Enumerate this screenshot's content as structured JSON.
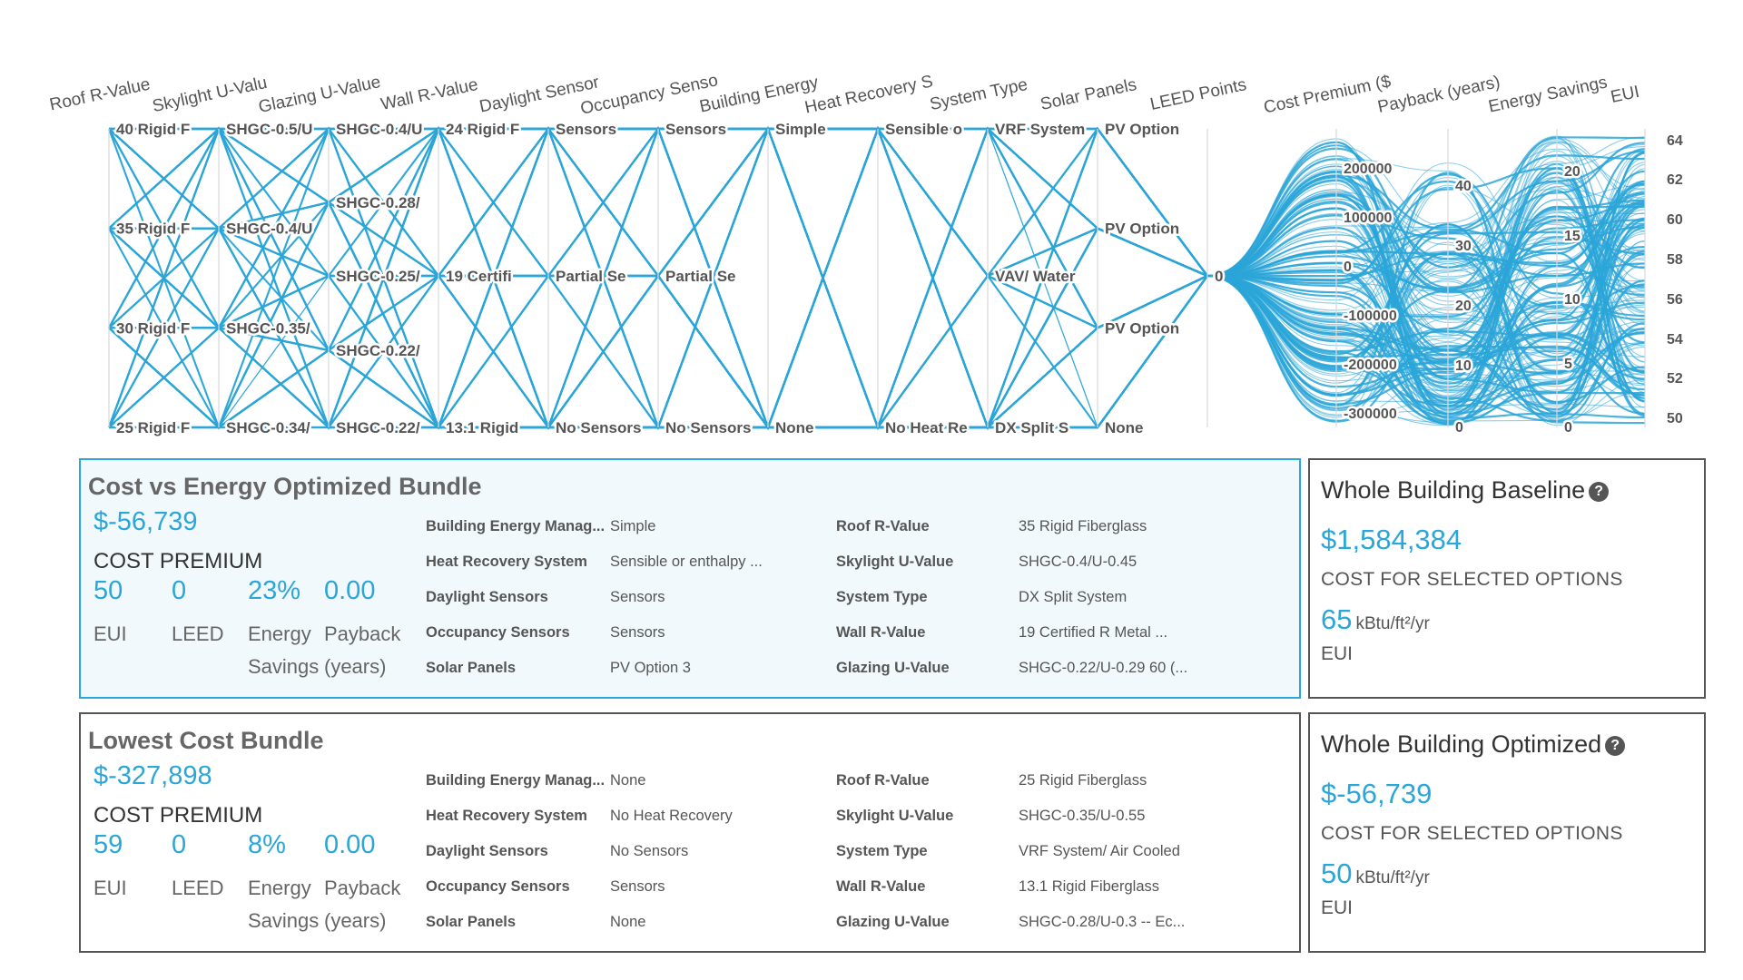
{
  "parallel_chart": {
    "accent_color": "#2ba6d8",
    "axes": [
      {
        "title": "Roof R-Value",
        "ticks": [
          "40 Rigid F",
          "35 Rigid F",
          "30 Rigid F",
          "25 Rigid F"
        ]
      },
      {
        "title": "Skylight U-Valu",
        "ticks": [
          "SHGC-0.5/U",
          "SHGC-0.4/U",
          "SHGC-0.35/",
          "SHGC-0.34/"
        ]
      },
      {
        "title": "Glazing U-Value",
        "ticks": [
          "SHGC-0.4/U",
          "SHGC-0.28/",
          "SHGC-0.25/",
          "SHGC-0.22/",
          "SHGC-0.22/"
        ]
      },
      {
        "title": "Wall R-Value",
        "ticks": [
          "24 Rigid F",
          "19 Certifi",
          "13.1 Rigid"
        ]
      },
      {
        "title": "Daylight Sensor",
        "ticks": [
          "Sensors",
          "Partial Se",
          "No Sensors"
        ]
      },
      {
        "title": "Occupancy Senso",
        "ticks": [
          "Sensors",
          "Partial Se",
          "No Sensors"
        ]
      },
      {
        "title": "Building Energy",
        "ticks": [
          "Simple",
          "None"
        ]
      },
      {
        "title": "Heat Recovery S",
        "ticks": [
          "Sensible o",
          "No Heat Re"
        ]
      },
      {
        "title": "System Type",
        "ticks": [
          "VRF System",
          "VAV/ Water",
          "DX Split S"
        ]
      },
      {
        "title": "Solar Panels",
        "ticks": [
          "PV Option",
          "PV Option",
          "PV Option",
          "None"
        ]
      },
      {
        "title": "LEED Points",
        "ticks": [
          "0"
        ]
      },
      {
        "title": "Cost Premium ($",
        "ticks": [
          "200000",
          "100000",
          "0",
          "-100000",
          "-200000",
          "-300000"
        ]
      },
      {
        "title": "Payback (years)",
        "ticks": [
          "40",
          "30",
          "20",
          "10",
          "0"
        ]
      },
      {
        "title": "Energy Savings",
        "ticks": [
          "20",
          "15",
          "10",
          "5",
          "0"
        ]
      },
      {
        "title": "EUI",
        "ticks": [
          "64",
          "62",
          "60",
          "58",
          "56",
          "54",
          "52",
          "50"
        ]
      }
    ]
  },
  "bundles": [
    {
      "title": "Cost vs Energy Optimized Bundle",
      "cost_premium": "$-56,739",
      "cost_premium_label": "COST PREMIUM",
      "stats": [
        {
          "value": "50",
          "label": "EUI"
        },
        {
          "value": "0",
          "label": "LEED"
        },
        {
          "value": "23%",
          "label": "Energy Savings"
        },
        {
          "value": "0.00",
          "label": "Payback (years)"
        }
      ],
      "params_left": [
        {
          "label": "Building Energy Manag...",
          "value": "Simple"
        },
        {
          "label": "Heat Recovery System",
          "value": "Sensible or enthalpy ..."
        },
        {
          "label": "Daylight Sensors",
          "value": "Sensors"
        },
        {
          "label": "Occupancy Sensors",
          "value": "Sensors"
        },
        {
          "label": "Solar Panels",
          "value": "PV Option 3"
        }
      ],
      "params_right": [
        {
          "label": "Roof R-Value",
          "value": "35 Rigid Fiberglass"
        },
        {
          "label": "Skylight U-Value",
          "value": "SHGC-0.4/U-0.45"
        },
        {
          "label": "System Type",
          "value": "DX Split System"
        },
        {
          "label": "Wall R-Value",
          "value": "19 Certified R Metal ..."
        },
        {
          "label": "Glazing U-Value",
          "value": "SHGC-0.22/U-0.29 60 (..."
        }
      ]
    },
    {
      "title": "Lowest Cost Bundle",
      "cost_premium": "$-327,898",
      "cost_premium_label": "COST PREMIUM",
      "stats": [
        {
          "value": "59",
          "label": "EUI"
        },
        {
          "value": "0",
          "label": "LEED"
        },
        {
          "value": "8%",
          "label": "Energy Savings"
        },
        {
          "value": "0.00",
          "label": "Payback (years)"
        }
      ],
      "params_left": [
        {
          "label": "Building Energy Manag...",
          "value": "None"
        },
        {
          "label": "Heat Recovery System",
          "value": "No Heat Recovery"
        },
        {
          "label": "Daylight Sensors",
          "value": "No Sensors"
        },
        {
          "label": "Occupancy Sensors",
          "value": "Sensors"
        },
        {
          "label": "Solar Panels",
          "value": "None"
        }
      ],
      "params_right": [
        {
          "label": "Roof R-Value",
          "value": "25 Rigid Fiberglass"
        },
        {
          "label": "Skylight U-Value",
          "value": "SHGC-0.35/U-0.55"
        },
        {
          "label": "System Type",
          "value": "VRF System/ Air Cooled"
        },
        {
          "label": "Wall R-Value",
          "value": "13.1 Rigid Fiberglass"
        },
        {
          "label": "Glazing U-Value",
          "value": "SHGC-0.28/U-0.3 -- Ec..."
        }
      ]
    }
  ],
  "summaries": [
    {
      "title": "Whole Building Baseline",
      "cost": "$1,584,384",
      "cost_label": "COST FOR SELECTED OPTIONS",
      "eui": "65",
      "eui_unit": "kBtu/ft²/yr",
      "eui_label": "EUI"
    },
    {
      "title": "Whole Building Optimized",
      "cost": "$-56,739",
      "cost_label": "COST FOR SELECTED OPTIONS",
      "eui": "50",
      "eui_unit": "kBtu/ft²/yr",
      "eui_label": "EUI"
    }
  ]
}
